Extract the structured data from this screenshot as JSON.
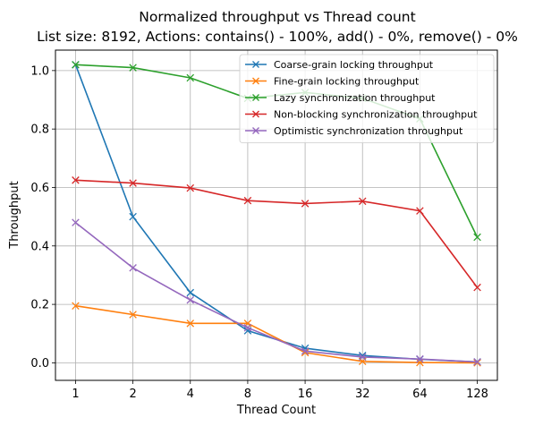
{
  "chart_data": {
    "type": "line",
    "title": "Normalized throughput vs Thread count",
    "subtitle": "List size: 8192, Actions: contains() - 100%, add() - 0%, remove() - 0%",
    "xlabel": "Thread Count",
    "ylabel": "Throughput",
    "categories": [
      "1",
      "2",
      "4",
      "8",
      "16",
      "32",
      "64",
      "128"
    ],
    "yticks": [
      "0.0",
      "0.2",
      "0.4",
      "0.6",
      "0.8",
      "1.0"
    ],
    "ylim": [
      -0.06,
      1.07
    ],
    "grid": true,
    "legend_position": "top-right",
    "series": [
      {
        "name": "Coarse-grain locking throughput",
        "color": "#1f77b4",
        "values": [
          1.02,
          0.5,
          0.24,
          0.11,
          0.05,
          0.025,
          0.012,
          0.003
        ]
      },
      {
        "name": "Fine-grain locking throughput",
        "color": "#ff7f0e",
        "values": [
          0.195,
          0.165,
          0.135,
          0.135,
          0.035,
          0.005,
          0.001,
          0.0
        ]
      },
      {
        "name": "Lazy synchronization throughput",
        "color": "#2ca02c",
        "values": [
          1.02,
          1.01,
          0.975,
          0.905,
          0.925,
          0.905,
          0.835,
          0.43
        ]
      },
      {
        "name": "Non-blocking synchronization throughput",
        "color": "#d62728",
        "values": [
          0.625,
          0.615,
          0.598,
          0.555,
          0.545,
          0.553,
          0.52,
          0.258
        ]
      },
      {
        "name": "Optimistic synchronization throughput",
        "color": "#9467bd",
        "values": [
          0.48,
          0.325,
          0.215,
          0.12,
          0.04,
          0.02,
          0.013,
          0.003
        ]
      }
    ]
  }
}
